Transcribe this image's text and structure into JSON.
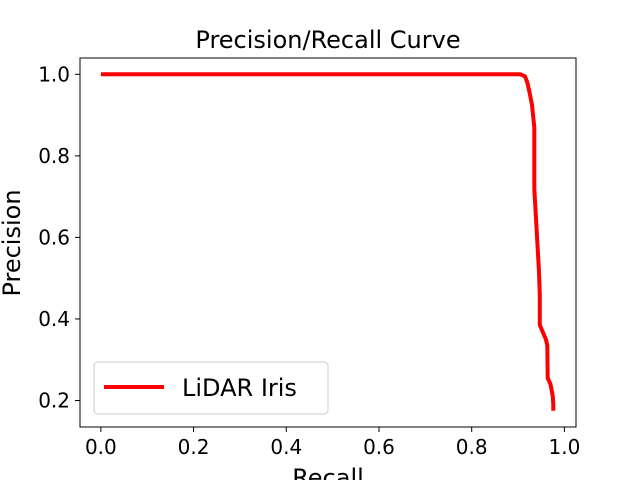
{
  "chart_data": {
    "type": "line",
    "title": "Precision/Recall Curve",
    "xlabel": "Recall",
    "ylabel": "Precision",
    "xlim": [
      -0.045,
      1.025
    ],
    "ylim": [
      0.135,
      1.04
    ],
    "grid": false,
    "legend_position": "lower-left",
    "x_ticks": [
      0.0,
      0.2,
      0.4,
      0.6,
      0.8,
      1.0
    ],
    "x_tick_labels": [
      "0.0",
      "0.2",
      "0.4",
      "0.6",
      "0.8",
      "1.0"
    ],
    "y_ticks": [
      0.2,
      0.4,
      0.6,
      0.8,
      1.0
    ],
    "y_tick_labels": [
      "0.2",
      "0.4",
      "0.6",
      "0.8",
      "1.0"
    ],
    "series": [
      {
        "name": "LiDAR Iris",
        "color": "#ff0000",
        "x": [
          0.0,
          0.2,
          0.4,
          0.6,
          0.8,
          0.905,
          0.915,
          0.92,
          0.925,
          0.93,
          0.935,
          0.935,
          0.935,
          0.94,
          0.945,
          0.947,
          0.947,
          0.96,
          0.963,
          0.964,
          0.97,
          0.975,
          0.976,
          0.976
        ],
        "y": [
          1.0,
          1.0,
          1.0,
          1.0,
          1.0,
          1.0,
          0.995,
          0.98,
          0.955,
          0.925,
          0.87,
          0.8,
          0.72,
          0.62,
          0.52,
          0.46,
          0.385,
          0.35,
          0.335,
          0.255,
          0.24,
          0.21,
          0.19,
          0.175
        ]
      }
    ]
  }
}
